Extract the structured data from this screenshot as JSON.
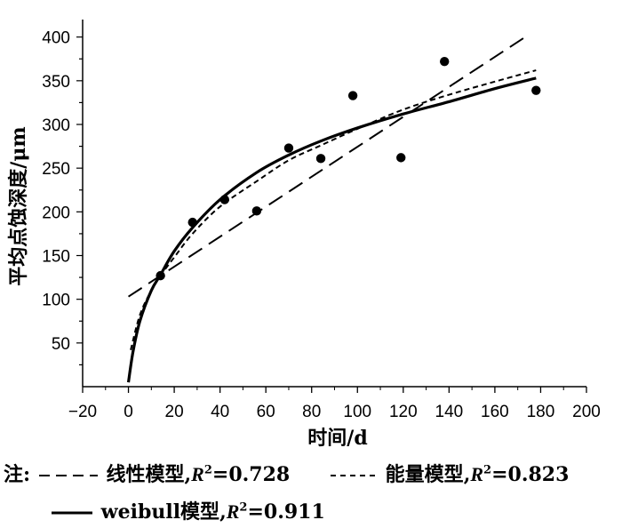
{
  "chart_data": {
    "type": "scatter",
    "xlabel": "时间/d",
    "ylabel": "平均点蚀深度/μm",
    "xlim": [
      -20,
      200
    ],
    "ylim": [
      0,
      420
    ],
    "xticks": [
      -20,
      0,
      20,
      40,
      60,
      80,
      100,
      120,
      140,
      160,
      180,
      200
    ],
    "yticks": [
      50,
      100,
      150,
      200,
      250,
      300,
      350,
      400
    ],
    "grid": false,
    "points": {
      "x": [
        14,
        28,
        42,
        56,
        70,
        84,
        98,
        119,
        138,
        178
      ],
      "y": [
        127,
        188,
        214,
        201,
        273,
        261,
        333,
        262,
        372,
        339
      ]
    },
    "series": [
      {
        "name": "线性模型",
        "style": "long-dash",
        "x": [
          0,
          175
        ],
        "y": [
          103,
          403
        ]
      },
      {
        "name": "能量模型",
        "style": "short-dash",
        "x": [
          1,
          5,
          10,
          14,
          20,
          28,
          40,
          56,
          70,
          84,
          100,
          120,
          140,
          160,
          178
        ],
        "y": [
          42,
          82,
          110,
          127,
          148,
          175,
          206,
          235,
          259,
          276,
          295,
          317,
          334,
          349,
          362
        ]
      },
      {
        "name": "weibull模型",
        "style": "solid",
        "x": [
          0,
          2,
          5,
          10,
          14,
          20,
          28,
          40,
          56,
          70,
          84,
          100,
          120,
          140,
          160,
          178
        ],
        "y": [
          5,
          40,
          75,
          110,
          128,
          155,
          182,
          214,
          245,
          265,
          281,
          296,
          312,
          326,
          341,
          353
        ]
      }
    ]
  },
  "legend": {
    "note_label": "注:",
    "items": [
      {
        "name": "线性模型",
        "r_label": "R",
        "r_sup": "2",
        "r_value": "=0.728"
      },
      {
        "name": "能量模型",
        "r_label": "R",
        "r_sup": "2",
        "r_value": "=0.823"
      },
      {
        "name": "weibull模型",
        "r_label": "R",
        "r_sup": "2",
        "r_value": "=0.911"
      }
    ]
  }
}
